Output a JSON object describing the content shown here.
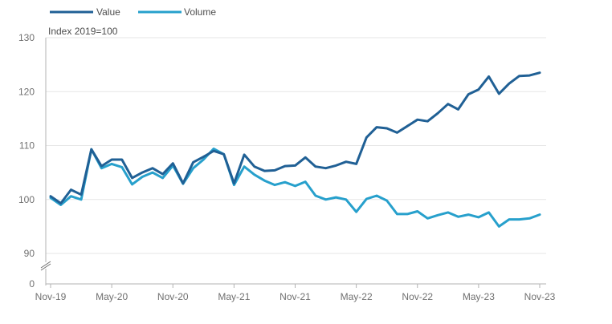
{
  "chart_data": {
    "type": "line",
    "title": "",
    "ylabel": "Index 2019=100",
    "xlabel": "",
    "x_tick_labels": [
      "Nov-19",
      "May-20",
      "Nov-20",
      "May-21",
      "Nov-21",
      "May-22",
      "Nov-22",
      "May-23",
      "Nov-23"
    ],
    "y_ticks": [
      90,
      100,
      110,
      120,
      130
    ],
    "y_zero_label": "0",
    "ylim": [
      90,
      130
    ],
    "axis_break": true,
    "legend_position": "top-left",
    "series": [
      {
        "name": "Value",
        "color": "#206095",
        "values": [
          100.6,
          99.3,
          101.8,
          100.9,
          109.3,
          106.2,
          107.4,
          107.4,
          104.0,
          105.0,
          105.8,
          104.7,
          106.7,
          103.0,
          106.9,
          107.9,
          109.0,
          108.4,
          103.0,
          108.3,
          106.1,
          105.3,
          105.4,
          106.2,
          106.3,
          107.8,
          106.1,
          105.8,
          106.3,
          107.0,
          106.6,
          111.5,
          113.4,
          113.2,
          112.4,
          113.6,
          114.8,
          114.5,
          116.0,
          117.7,
          116.7,
          119.5,
          120.4,
          122.8,
          119.6,
          121.5,
          122.9,
          123.0,
          123.5
        ]
      },
      {
        "name": "Volume",
        "color": "#27a0cc",
        "values": [
          100.3,
          99.0,
          100.6,
          100.0,
          109.3,
          105.8,
          106.6,
          106.0,
          102.8,
          104.2,
          105.0,
          104.0,
          106.3,
          102.9,
          105.8,
          107.4,
          109.4,
          108.4,
          102.7,
          106.1,
          104.6,
          103.5,
          102.7,
          103.2,
          102.5,
          103.3,
          100.7,
          100.0,
          100.4,
          100.0,
          97.7,
          100.1,
          100.7,
          99.8,
          97.3,
          97.3,
          97.8,
          96.5,
          97.1,
          97.6,
          96.8,
          97.2,
          96.7,
          97.6,
          95.0,
          96.3,
          96.3,
          96.5,
          97.2
        ]
      }
    ]
  }
}
